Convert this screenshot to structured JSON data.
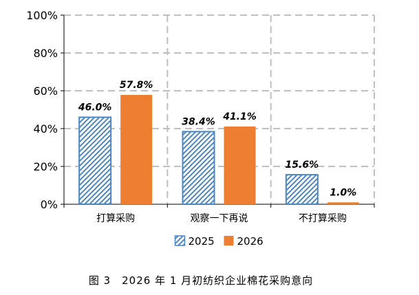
{
  "chart_data": {
    "type": "bar",
    "title": "",
    "xlabel": "",
    "ylabel": "",
    "ylim": [
      0,
      100
    ],
    "yticks": [
      0,
      20,
      40,
      60,
      80,
      100
    ],
    "ytick_labels": [
      "0%",
      "20%",
      "40%",
      "60%",
      "80%",
      "100%"
    ],
    "categories": [
      "打算采购",
      "观察一下再说",
      "不打算采购"
    ],
    "series": [
      {
        "name": "2025",
        "values": [
          46.0,
          38.4,
          15.6
        ],
        "labels": [
          "46.0%",
          "38.4%",
          "15.6%"
        ],
        "color": "#4a86c5",
        "pattern": "diagonal-hatch"
      },
      {
        "name": "2026",
        "values": [
          57.8,
          41.1,
          1.0
        ],
        "labels": [
          "57.8%",
          "41.1%",
          "1.0%"
        ],
        "color": "#ed7d31",
        "pattern": "solid"
      }
    ],
    "grid": true,
    "grid_style": "dashed",
    "legend_position": "bottom-center"
  },
  "caption": "图 3　2026 年 1 月初纺织企业棉花采购意向"
}
